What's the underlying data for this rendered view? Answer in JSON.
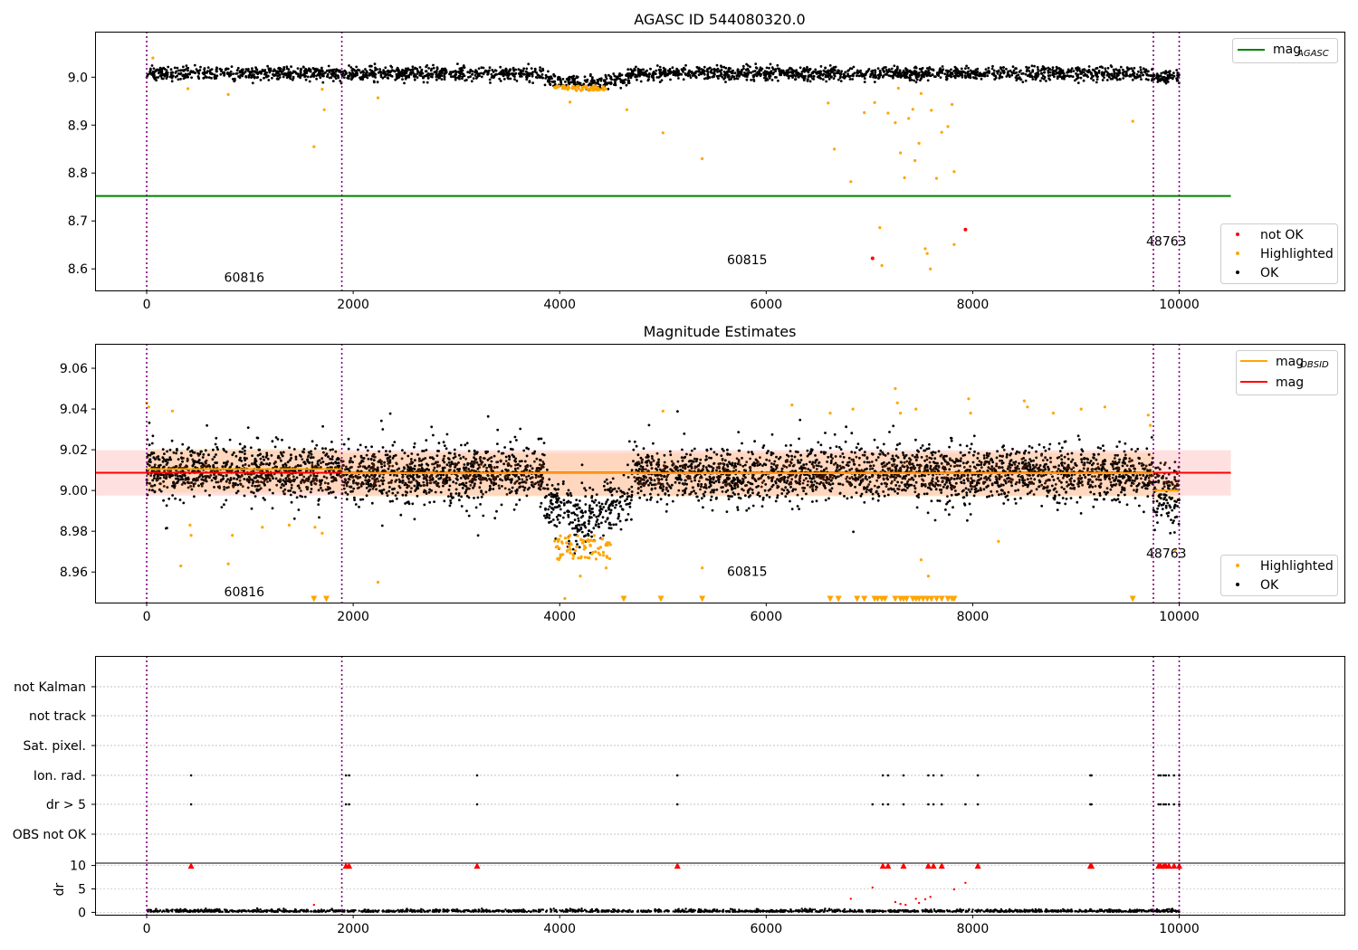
{
  "chart_data": [
    {
      "type": "scatter",
      "title": "AGASC ID 544080320.0",
      "xlim": [
        -500,
        11600
      ],
      "ylim": [
        8.555,
        9.095
      ],
      "x_ticks": [
        0,
        2000,
        4000,
        6000,
        8000,
        10000
      ],
      "y_ticks": [
        8.6,
        8.7,
        8.8,
        8.9,
        9.0
      ],
      "obsid_boundaries": [
        0,
        1890,
        9750,
        10000
      ],
      "obsid_labels": [
        {
          "text": "60816",
          "x": 750,
          "y": 8.573
        },
        {
          "text": "60815",
          "x": 5620,
          "y": 8.61
        },
        {
          "text": "48763",
          "x": 9680,
          "y": 8.648
        }
      ],
      "mag_agasc": {
        "value": 8.752,
        "x_range": [
          -500,
          10500
        ],
        "color": "#008000"
      },
      "legend_top": {
        "position": "top-right",
        "entries": [
          {
            "label": "mag",
            "sub": "AGASC",
            "color": "#008000"
          }
        ]
      },
      "legend_bottom": {
        "position": "bottom-right",
        "entries": [
          {
            "label": "not OK",
            "color": "#ff0000"
          },
          {
            "label": "Highlighted",
            "color": "#ffa500"
          },
          {
            "label": "OK",
            "color": "#000000"
          }
        ]
      },
      "series": [
        {
          "name": "OK",
          "color": "#000000",
          "description": "dense points near 9.01 from x=0 to 10000, dip to ~8.985 around x=4000-4600"
        },
        {
          "name": "Highlighted",
          "color": "#ffa500",
          "points": [
            [
              1620,
              8.855
            ],
            [
              1720,
              8.932
            ],
            [
              2240,
              8.957
            ],
            [
              4100,
              8.948
            ],
            [
              4650,
              8.932
            ],
            [
              5000,
              8.884
            ],
            [
              5380,
              8.83
            ],
            [
              6600,
              8.946
            ],
            [
              6660,
              8.85
            ],
            [
              6820,
              8.782
            ],
            [
              6950,
              8.926
            ],
            [
              7050,
              8.947
            ],
            [
              7100,
              8.686
            ],
            [
              7120,
              8.607
            ],
            [
              7180,
              8.925
            ],
            [
              7250,
              8.905
            ],
            [
              7280,
              8.977
            ],
            [
              7300,
              8.842
            ],
            [
              7340,
              8.79
            ],
            [
              7380,
              8.914
            ],
            [
              7420,
              8.933
            ],
            [
              7440,
              8.826
            ],
            [
              7480,
              8.862
            ],
            [
              7500,
              8.966
            ],
            [
              7540,
              8.642
            ],
            [
              7560,
              8.632
            ],
            [
              7590,
              8.6
            ],
            [
              7600,
              8.931
            ],
            [
              7650,
              8.789
            ],
            [
              7700,
              8.885
            ],
            [
              7760,
              8.897
            ],
            [
              7800,
              8.943
            ],
            [
              7820,
              8.803
            ],
            [
              7820,
              8.651
            ],
            [
              9550,
              8.908
            ],
            [
              60,
              9.04
            ],
            [
              400,
              8.976
            ],
            [
              790,
              8.964
            ],
            [
              1700,
              8.975
            ]
          ]
        },
        {
          "name": "not OK",
          "color": "#ff0000",
          "points": [
            [
              7030,
              8.622
            ],
            [
              7930,
              8.682
            ]
          ]
        }
      ]
    },
    {
      "type": "scatter",
      "title": "Magnitude Estimates",
      "xlim": [
        -500,
        11600
      ],
      "ylim": [
        8.945,
        9.072
      ],
      "x_ticks": [
        0,
        2000,
        4000,
        6000,
        8000,
        10000
      ],
      "y_ticks": [
        8.96,
        8.98,
        9.0,
        9.02,
        9.04,
        9.06
      ],
      "obsid_boundaries": [
        0,
        1890,
        9750,
        10000
      ],
      "obsid_labels": [
        {
          "text": "60816",
          "x": 750,
          "y": 8.948
        },
        {
          "text": "60815",
          "x": 5620,
          "y": 8.958
        },
        {
          "text": "48763",
          "x": 9680,
          "y": 8.967
        }
      ],
      "mag": {
        "value": 9.0087,
        "band": [
          8.9975,
          9.0198
        ],
        "color": "#ff0000"
      },
      "mag_obsid": [
        {
          "x_range": [
            0,
            1890
          ],
          "value": 9.0105,
          "band": [
            8.999,
            9.0205
          ]
        },
        {
          "x_range": [
            1890,
            9750
          ],
          "value": 9.0085,
          "band": [
            8.997,
            9.0185
          ]
        },
        {
          "x_range": [
            9750,
            10000
          ],
          "value": 9.0,
          "band": [
            8.995,
            9.005
          ]
        }
      ],
      "legend_top": {
        "position": "top-right",
        "entries": [
          {
            "label": "mag",
            "sub": "OBSID",
            "color": "#ffa500"
          },
          {
            "label": "mag",
            "sub": "",
            "color": "#ff0000"
          }
        ]
      },
      "legend_bottom": {
        "position": "bottom-right",
        "entries": [
          {
            "label": "Highlighted",
            "color": "#ffa500"
          },
          {
            "label": "OK",
            "color": "#000000"
          }
        ]
      },
      "series": [
        {
          "name": "OK",
          "color": "#000000",
          "description": "scatter around 9.005-9.015, dip to ~8.985 near x=4000-4600"
        },
        {
          "name": "Highlighted",
          "color": "#ffa500",
          "points": [
            [
              0,
              9.043
            ],
            [
              20,
              9.041
            ],
            [
              250,
              9.039
            ],
            [
              330,
              8.963
            ],
            [
              420,
              8.983
            ],
            [
              430,
              8.978
            ],
            [
              790,
              8.964
            ],
            [
              830,
              8.978
            ],
            [
              1120,
              8.982
            ],
            [
              1380,
              8.983
            ],
            [
              1630,
              8.982
            ],
            [
              1700,
              8.979
            ],
            [
              2240,
              8.955
            ],
            [
              4050,
              8.947
            ],
            [
              4200,
              8.958
            ],
            [
              4450,
              8.962
            ],
            [
              5000,
              9.039
            ],
            [
              5380,
              8.962
            ],
            [
              6250,
              9.042
            ],
            [
              6620,
              9.038
            ],
            [
              6840,
              9.04
            ],
            [
              7250,
              9.05
            ],
            [
              7270,
              9.043
            ],
            [
              7300,
              9.038
            ],
            [
              7450,
              9.04
            ],
            [
              7500,
              8.966
            ],
            [
              7570,
              8.958
            ],
            [
              7960,
              9.045
            ],
            [
              7980,
              9.038
            ],
            [
              8250,
              8.975
            ],
            [
              8500,
              9.044
            ],
            [
              8530,
              9.041
            ],
            [
              8780,
              9.038
            ],
            [
              9050,
              9.04
            ],
            [
              9280,
              9.041
            ],
            [
              9700,
              9.037
            ],
            [
              9720,
              9.032
            ],
            [
              9960,
              8.971
            ]
          ]
        },
        {
          "name": "Highlighted (clipped)",
          "color": "#ffa500",
          "x": [
            1620,
            1740,
            4620,
            4980,
            5380,
            6620,
            6700,
            6880,
            6950,
            7050,
            7080,
            7120,
            7150,
            7250,
            7300,
            7330,
            7360,
            7420,
            7450,
            7480,
            7520,
            7560,
            7600,
            7650,
            7700,
            7760,
            7800,
            7820,
            9550
          ]
        }
      ]
    },
    {
      "type": "scatter",
      "title": "",
      "xlim": [
        -500,
        11600
      ],
      "x_ticks": [
        0,
        2000,
        4000,
        6000,
        8000,
        10000
      ],
      "flag_rows": [
        "not Kalman",
        "not track",
        "Sat. pixel.",
        "Ion. rad.",
        "dr > 5",
        "OBS not OK"
      ],
      "obsid_boundaries": [
        0,
        1890,
        9750,
        10000
      ],
      "flags": {
        "Ion. rad.": [
          430,
          1930,
          1960,
          3200,
          5140,
          7130,
          7180,
          7330,
          7570,
          7620,
          7700,
          8050,
          9140,
          9150,
          9800,
          9820,
          9850,
          9870,
          9900,
          9950,
          10000
        ],
        "dr > 5": [
          430,
          1930,
          1960,
          3200,
          5140,
          7030,
          7130,
          7180,
          7330,
          7570,
          7620,
          7700,
          7930,
          8050,
          9140,
          9150,
          9800,
          9820,
          9850,
          9870,
          9900,
          9950,
          10000
        ]
      },
      "dr": {
        "ylabel": "dr",
        "ylim": [
          -0.5,
          10.5
        ],
        "y_ticks": [
          0,
          5,
          10
        ],
        "clipped_color": "#ff0000",
        "clipped_x": [
          430,
          1930,
          1960,
          3200,
          5140,
          7130,
          7180,
          7330,
          7570,
          7620,
          7700,
          8050,
          9140,
          9150,
          9800,
          9820,
          9850,
          9870,
          9900,
          9950,
          10000
        ],
        "outliers": [
          [
            6820,
            2.9
          ],
          [
            7030,
            5.3
          ],
          [
            7250,
            2.2
          ],
          [
            7300,
            1.8
          ],
          [
            7350,
            1.6
          ],
          [
            7450,
            2.9
          ],
          [
            7480,
            2.0
          ],
          [
            7540,
            2.8
          ],
          [
            7590,
            3.3
          ],
          [
            7820,
            4.9
          ],
          [
            7930,
            6.3
          ],
          [
            1620,
            1.6
          ]
        ],
        "base": "dense black points between 0 and ~1 from x=0 to 10000"
      }
    }
  ]
}
